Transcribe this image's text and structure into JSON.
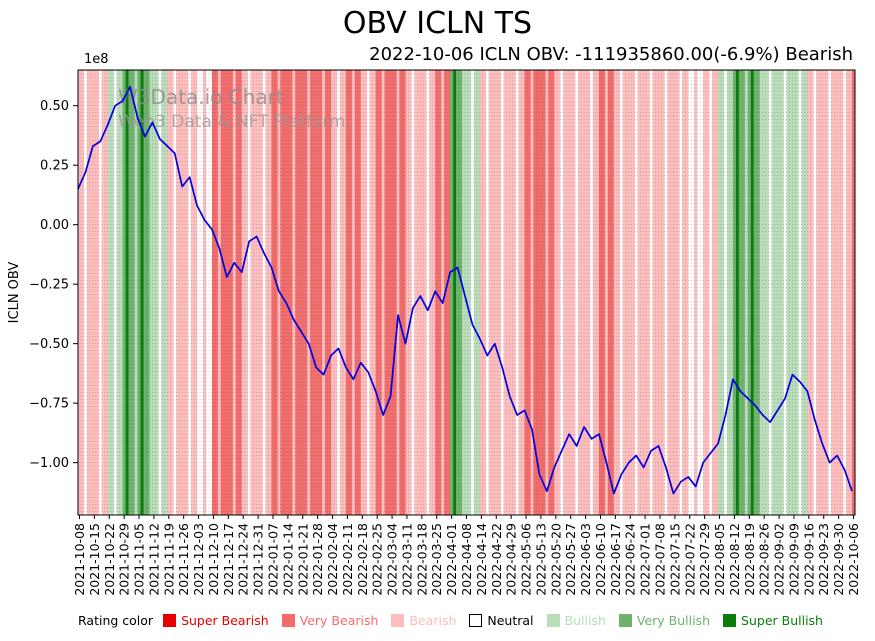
{
  "chart_data": {
    "type": "line",
    "title": "OBV ICLN TS",
    "subtitle": "2022-10-06 ICLN OBV: -111935860.00(-6.9%) Bearish",
    "ylabel": "ICLN OBV",
    "y_offset_label": "1e8",
    "y_unit_multiplier": 100000000,
    "line_color": "#0000e0",
    "ylim": [
      -1.22,
      0.65
    ],
    "grid": "vertical-dotted-daily",
    "legend_position": "bottom",
    "y_ticks": [
      {
        "value": 0.5,
        "label": "0.50"
      },
      {
        "value": 0.25,
        "label": "0.25"
      },
      {
        "value": 0.0,
        "label": "0.00"
      },
      {
        "value": -0.25,
        "label": "−0.25"
      },
      {
        "value": -0.5,
        "label": "−0.50"
      },
      {
        "value": -0.75,
        "label": "−0.75"
      },
      {
        "value": -1.0,
        "label": "−1.00"
      }
    ],
    "x_tick_labels": [
      "2021-10-08",
      "2021-10-15",
      "2021-10-22",
      "2021-10-29",
      "2021-11-05",
      "2021-11-12",
      "2021-11-19",
      "2021-11-26",
      "2021-12-03",
      "2021-12-10",
      "2021-12-17",
      "2021-12-24",
      "2021-12-31",
      "2022-01-07",
      "2022-01-14",
      "2022-01-21",
      "2022-01-28",
      "2022-02-04",
      "2022-02-11",
      "2022-02-18",
      "2022-02-25",
      "2022-03-04",
      "2022-03-11",
      "2022-03-18",
      "2022-03-25",
      "2022-04-01",
      "2022-04-08",
      "2022-04-14",
      "2022-04-22",
      "2022-04-29",
      "2022-05-06",
      "2022-05-13",
      "2022-05-20",
      "2022-05-27",
      "2022-06-03",
      "2022-06-10",
      "2022-06-17",
      "2022-06-24",
      "2022-07-01",
      "2022-07-08",
      "2022-07-15",
      "2022-07-22",
      "2022-07-29",
      "2022-08-05",
      "2022-08-12",
      "2022-08-19",
      "2022-08-26",
      "2022-09-02",
      "2022-09-09",
      "2022-09-16",
      "2022-09-23",
      "2022-09-30",
      "2022-10-06"
    ],
    "values_per_week": 2,
    "values_unit": "1e8",
    "values": [
      0.15,
      0.22,
      0.33,
      0.35,
      0.42,
      0.5,
      0.52,
      0.58,
      0.45,
      0.37,
      0.43,
      0.36,
      0.33,
      0.3,
      0.16,
      0.2,
      0.08,
      0.02,
      -0.02,
      -0.1,
      -0.22,
      -0.16,
      -0.2,
      -0.07,
      -0.05,
      -0.12,
      -0.18,
      -0.28,
      -0.33,
      -0.4,
      -0.45,
      -0.5,
      -0.6,
      -0.63,
      -0.55,
      -0.52,
      -0.6,
      -0.65,
      -0.58,
      -0.62,
      -0.7,
      -0.8,
      -0.72,
      -0.38,
      -0.5,
      -0.35,
      -0.3,
      -0.36,
      -0.28,
      -0.33,
      -0.2,
      -0.18,
      -0.3,
      -0.42,
      -0.48,
      -0.55,
      -0.5,
      -0.6,
      -0.72,
      -0.8,
      -0.78,
      -0.86,
      -1.05,
      -1.12,
      -1.02,
      -0.95,
      -0.88,
      -0.93,
      -0.85,
      -0.9,
      -0.88,
      -1.0,
      -1.13,
      -1.05,
      -1.0,
      -0.97,
      -1.02,
      -0.95,
      -0.93,
      -1.02,
      -1.13,
      -1.08,
      -1.06,
      -1.1,
      -1.0,
      -0.96,
      -0.92,
      -0.8,
      -0.65,
      -0.7,
      -0.73,
      -0.76,
      -0.8,
      -0.83,
      -0.78,
      -0.73,
      -0.63,
      -0.66,
      -0.7,
      -0.82,
      -0.92,
      -1.0,
      -0.97,
      -1.03,
      -1.12
    ],
    "week_ratings": [
      "Bearish",
      "Bearish",
      "Bullish",
      "Very Bullish",
      "Very Bullish",
      "Bullish",
      "Bearish",
      "Bearish",
      "Neutral",
      "Very Bearish",
      "Very Bearish",
      "Bearish",
      "Bearish",
      "Very Bearish",
      "Very Bearish",
      "Very Bearish",
      "Very Bearish",
      "Bearish",
      "Very Bearish",
      "Bearish",
      "Very Bearish",
      "Very Bearish",
      "Bearish",
      "Bearish",
      "Very Bearish",
      "Very Bullish",
      "Bullish",
      "Bearish",
      "Bearish",
      "Bearish",
      "Very Bearish",
      "Very Bearish",
      "Bearish",
      "Bearish",
      "Bearish",
      "Very Bearish",
      "Bearish",
      "Bearish",
      "Bearish",
      "Bearish",
      "Bearish",
      "Neutral",
      "Bearish",
      "Bullish",
      "Very Bullish",
      "Very Bullish",
      "Bullish",
      "Bullish",
      "Bullish",
      "Bearish",
      "Bearish",
      "Bearish",
      "Very Bearish"
    ],
    "rating_colors": {
      "Super Bearish": "#e60000",
      "Very Bearish": "#f26c6c",
      "Bearish": "#ffbcbc",
      "Neutral": "#ffffff",
      "Bullish": "#b9dcb9",
      "Very Bullish": "#6db36d",
      "Super Bullish": "#0a7d0a"
    }
  },
  "watermark": {
    "line1": "W3Data.io Chart",
    "line2": "Web3 Data & NFT Platform"
  },
  "legend": {
    "label": "Rating color",
    "items": [
      {
        "label": "Super Bearish"
      },
      {
        "label": "Very Bearish"
      },
      {
        "label": "Bearish"
      },
      {
        "label": "Neutral"
      },
      {
        "label": "Bullish"
      },
      {
        "label": "Very Bullish"
      },
      {
        "label": "Super Bullish"
      }
    ]
  }
}
